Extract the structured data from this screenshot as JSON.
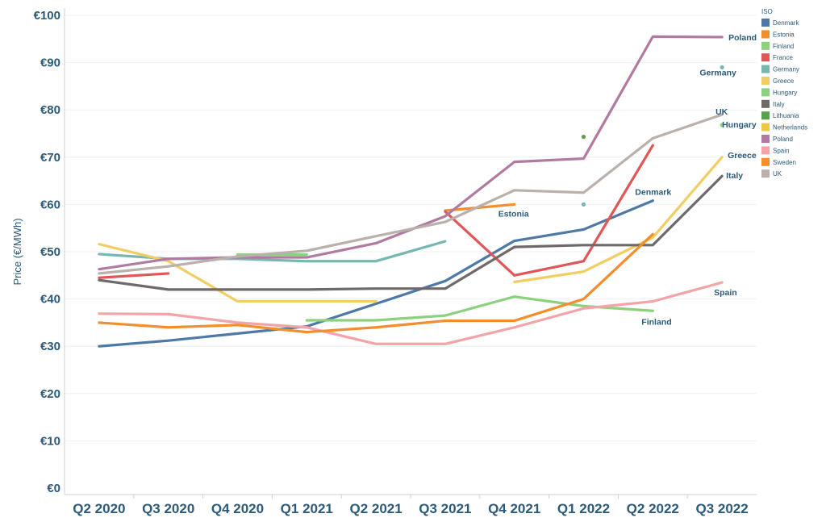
{
  "chart_data": {
    "type": "line",
    "ylabel": "Price (€/MWh)",
    "ylim": [
      0,
      100
    ],
    "y_ticks": [
      "€0",
      "€10",
      "€20",
      "€30",
      "€40",
      "€50",
      "€60",
      "€70",
      "€80",
      "€90",
      "€100"
    ],
    "categories": [
      "Q2 2020",
      "Q3 2020",
      "Q4 2020",
      "Q1 2021",
      "Q2 2021",
      "Q3 2021",
      "Q4 2021",
      "Q1 2022",
      "Q2 2022",
      "Q3 2022"
    ],
    "grid": "horizontal",
    "legend_title": "ISO",
    "legend_position": "top-right",
    "series": [
      {
        "name": "Denmark",
        "color": "#4e79a7",
        "label": "Denmark",
        "values": [
          30,
          31.2,
          32.7,
          34.2,
          39,
          43.8,
          52.3,
          54.7,
          60.8,
          null
        ]
      },
      {
        "name": "Estonia",
        "color": "#f28e2b",
        "label": "Estonia",
        "values": [
          null,
          null,
          null,
          null,
          null,
          58.7,
          60,
          null,
          null,
          null
        ]
      },
      {
        "name": "Finland",
        "color": "#8cd17d",
        "label": "Finland",
        "values": [
          null,
          null,
          null,
          35.5,
          35.5,
          36.5,
          40.5,
          38.5,
          37.5,
          null
        ]
      },
      {
        "name": "France",
        "color": "#e15759",
        "label": "",
        "values": [
          44.5,
          45.4,
          null,
          null,
          null,
          58.5,
          45,
          48,
          72.5,
          null
        ]
      },
      {
        "name": "Germany",
        "color": "#76b7b2",
        "label": "Germany",
        "values": [
          49.5,
          48.5,
          48.5,
          48,
          48,
          52.2,
          null,
          60,
          null,
          89
        ]
      },
      {
        "name": "Greece",
        "color": "#f1ce63",
        "label": "Greece",
        "values": [
          51.6,
          48,
          39.5,
          39.5,
          39.5,
          null,
          43.6,
          45.8,
          53,
          70
        ]
      },
      {
        "name": "Hungary",
        "color": "#8cd17d",
        "label": "Hungary",
        "values": [
          null,
          null,
          49.4,
          49.4,
          null,
          null,
          null,
          null,
          null,
          76.8
        ]
      },
      {
        "name": "Italy",
        "color": "#6f6a69",
        "label": "Italy",
        "values": [
          44,
          42,
          42,
          42,
          42.2,
          42.2,
          51,
          51.4,
          51.4,
          66
        ]
      },
      {
        "name": "Lithuania",
        "color": "#59a14f",
        "label": "",
        "values": [
          null,
          null,
          null,
          null,
          null,
          null,
          null,
          74.3,
          null,
          null
        ]
      },
      {
        "name": "Netherlands",
        "color": "#edc948",
        "label": "",
        "values": [
          null,
          null,
          null,
          null,
          null,
          null,
          null,
          null,
          null,
          null
        ]
      },
      {
        "name": "Poland",
        "color": "#b07aa1",
        "label": "Poland",
        "values": [
          46.3,
          48.5,
          48.8,
          48.8,
          51.8,
          57.5,
          69,
          69.7,
          95.5,
          95.4
        ]
      },
      {
        "name": "Spain",
        "color": "#f4a3a8",
        "label": "Spain",
        "values": [
          36.9,
          36.8,
          35,
          34,
          30.5,
          30.5,
          34,
          38,
          39.5,
          43.5
        ]
      },
      {
        "name": "Sweden",
        "color": "#f28e2b",
        "label": "",
        "values": [
          35,
          34,
          34.5,
          33,
          34,
          35.4,
          35.4,
          40,
          53.7,
          null
        ]
      },
      {
        "name": "UK",
        "color": "#bab0ac",
        "label": "UK",
        "values": [
          45.4,
          46.9,
          49,
          50.2,
          53.3,
          56.3,
          63,
          62.5,
          74,
          79
        ]
      }
    ]
  }
}
